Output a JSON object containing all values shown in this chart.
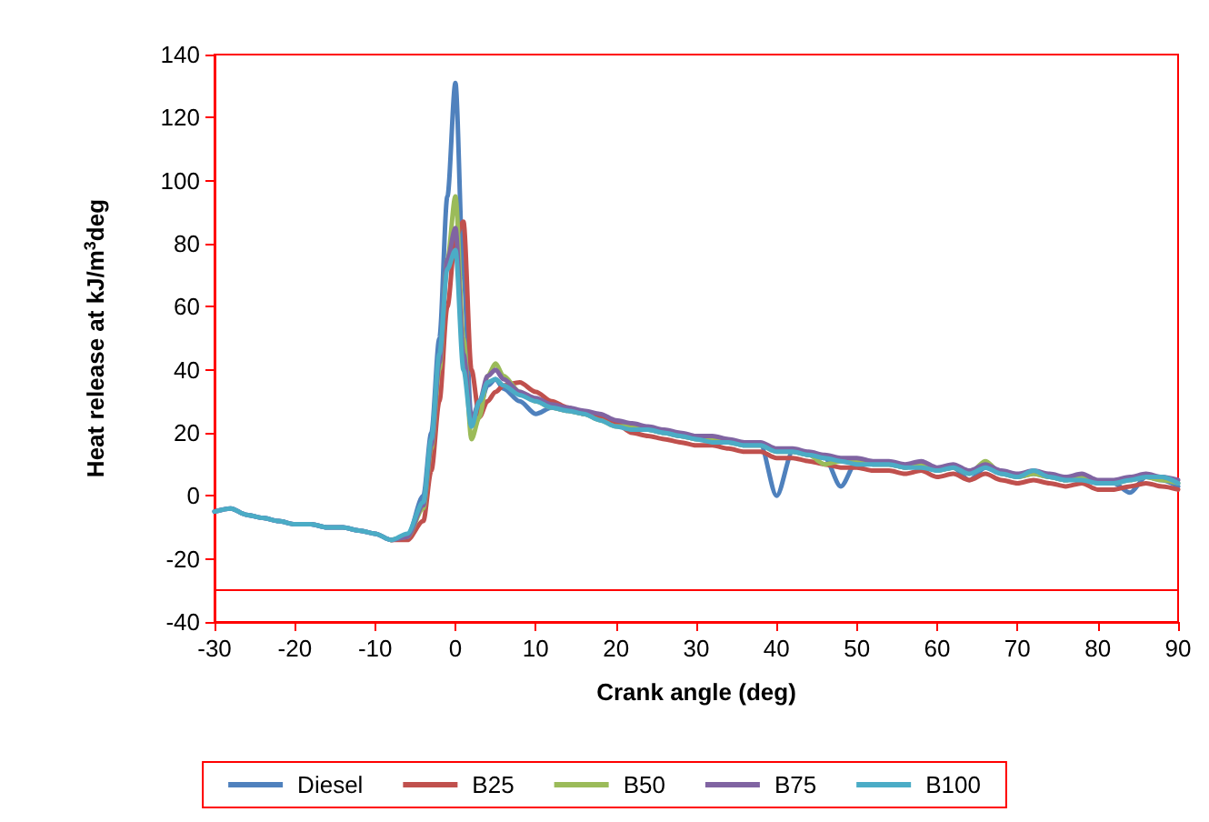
{
  "chart_data": {
    "type": "line",
    "xlabel": "Crank angle (deg)",
    "ylabel": "Heat release at kJ/m$^{3}$deg",
    "x": [
      -30,
      -28,
      -26,
      -24,
      -22,
      -20,
      -18,
      -16,
      -14,
      -12,
      -10,
      -8,
      -6,
      -4,
      -3,
      -2,
      -1,
      0,
      1,
      2,
      3,
      4,
      5,
      6,
      8,
      10,
      12,
      14,
      16,
      18,
      20,
      22,
      24,
      26,
      28,
      30,
      32,
      34,
      36,
      38,
      40,
      42,
      44,
      46,
      48,
      50,
      52,
      54,
      56,
      58,
      60,
      62,
      64,
      66,
      68,
      70,
      72,
      74,
      76,
      78,
      80,
      82,
      84,
      86,
      88,
      90
    ],
    "series": [
      {
        "name": "Diesel",
        "color": "#4f81bd",
        "values": [
          -5,
          -4,
          -6,
          -7,
          -8,
          -9,
          -9,
          -10,
          -10,
          -11,
          -12,
          -14,
          -13,
          0,
          20,
          50,
          95,
          131,
          70,
          24,
          28,
          35,
          37,
          34,
          30,
          26,
          28,
          27,
          26,
          25,
          23,
          22,
          21,
          20,
          19,
          18,
          18,
          17,
          16,
          16,
          0,
          14,
          13,
          12,
          3,
          11,
          10,
          10,
          9,
          10,
          8,
          9,
          5,
          9,
          7,
          6,
          7,
          6,
          5,
          6,
          4,
          4,
          1,
          6,
          5,
          3
        ]
      },
      {
        "name": "B25",
        "color": "#c0504d",
        "values": [
          null,
          null,
          null,
          null,
          null,
          null,
          null,
          null,
          null,
          null,
          null,
          -14,
          -14,
          -8,
          8,
          30,
          60,
          82,
          87,
          40,
          25,
          30,
          33,
          35,
          36,
          33,
          30,
          28,
          26,
          25,
          23,
          20,
          19,
          18,
          17,
          16,
          16,
          15,
          14,
          14,
          12,
          12,
          11,
          10,
          9,
          9,
          8,
          8,
          7,
          8,
          6,
          7,
          5,
          7,
          5,
          4,
          5,
          4,
          3,
          4,
          2,
          2,
          3,
          4,
          3,
          2
        ]
      },
      {
        "name": "B50",
        "color": "#9bbb59",
        "values": [
          null,
          null,
          null,
          null,
          null,
          null,
          null,
          null,
          null,
          null,
          null,
          -14,
          -13,
          -4,
          15,
          40,
          75,
          95,
          50,
          18,
          25,
          38,
          42,
          38,
          33,
          30,
          28,
          27,
          26,
          24,
          22,
          22,
          21,
          20,
          19,
          18,
          18,
          17,
          16,
          16,
          14,
          14,
          13,
          10,
          11,
          11,
          10,
          10,
          9,
          10,
          8,
          9,
          7,
          11,
          7,
          6,
          7,
          6,
          5,
          6,
          4,
          4,
          5,
          6,
          5,
          4
        ]
      },
      {
        "name": "B75",
        "color": "#8064a2",
        "values": [
          -5,
          -4,
          -6,
          -7,
          -8,
          -9,
          -9,
          -10,
          -10,
          -11,
          -12,
          -14,
          -13,
          -3,
          16,
          42,
          75,
          85,
          45,
          24,
          30,
          38,
          40,
          37,
          33,
          31,
          29,
          28,
          27,
          26,
          24,
          23,
          22,
          21,
          20,
          19,
          19,
          18,
          17,
          17,
          15,
          15,
          14,
          13,
          12,
          12,
          11,
          11,
          10,
          11,
          9,
          10,
          8,
          10,
          8,
          7,
          8,
          7,
          6,
          7,
          5,
          5,
          6,
          7,
          6,
          5
        ]
      },
      {
        "name": "B100",
        "color": "#4bacc6",
        "values": [
          -5,
          -4,
          -6,
          -7,
          -8,
          -9,
          -9,
          -10,
          -10,
          -11,
          -12,
          -14,
          -12,
          -2,
          18,
          45,
          72,
          78,
          40,
          22,
          30,
          36,
          37,
          35,
          32,
          30,
          28,
          27,
          26,
          24,
          22,
          21,
          21,
          20,
          19,
          18,
          17,
          17,
          16,
          16,
          14,
          14,
          13,
          12,
          11,
          10,
          10,
          10,
          9,
          9,
          8,
          9,
          7,
          9,
          7,
          6,
          8,
          6,
          5,
          5,
          4,
          4,
          5,
          6,
          6,
          4
        ]
      }
    ],
    "xlim": [
      -30,
      90
    ],
    "xticks": [
      -30,
      -20,
      -10,
      0,
      10,
      20,
      30,
      40,
      50,
      60,
      70,
      80,
      90
    ],
    "ylim": [
      -40,
      140
    ],
    "yticks": [
      -40,
      -20,
      0,
      20,
      40,
      60,
      80,
      100,
      120,
      140
    ],
    "ref_lines": [
      {
        "axis": "y",
        "value": -30,
        "color": "#ff0000"
      }
    ],
    "grid": false,
    "legend": "bottom",
    "marker": "none",
    "line_style": "solid"
  }
}
